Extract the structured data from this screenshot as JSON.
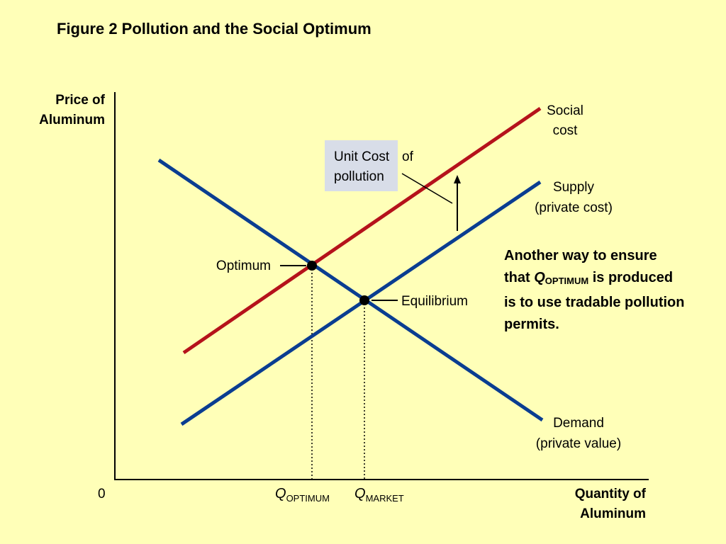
{
  "title": "Figure 2 Pollution and the Social Optimum",
  "axes": {
    "y_label_line1": "Price of",
    "y_label_line2": "Aluminum",
    "x_label_line1": "Quantity of",
    "x_label_line2": "Aluminum",
    "origin": "0"
  },
  "curves": {
    "social_cost_line1": "Social",
    "social_cost_line2": "cost",
    "supply_line1": "Supply",
    "supply_line2": "(private cost)",
    "demand_line1": "Demand",
    "demand_line2": "(private value)"
  },
  "points": {
    "optimum": "Optimum",
    "equilibrium": "Equilibrium"
  },
  "quantities": {
    "q": "Q",
    "optimum_sub": "OPTIMUM",
    "market_sub": "MARKET"
  },
  "callout": {
    "part1_line1": "Unit Cost",
    "part2_line1": "of",
    "line2": "pollution"
  },
  "note": {
    "line1": "Another way to ensure",
    "line2_pre": "that ",
    "q": "Q",
    "q_sub": "OPTIMUM",
    "line2_post": " is produced",
    "line3": "is to use tradable pollution",
    "line4": "permits."
  },
  "colors": {
    "social_cost": "#b5121b",
    "supply": "#0a3d91",
    "demand": "#0a3d91",
    "background": "#ffffb8",
    "callout_bg": "#d8dde8"
  }
}
